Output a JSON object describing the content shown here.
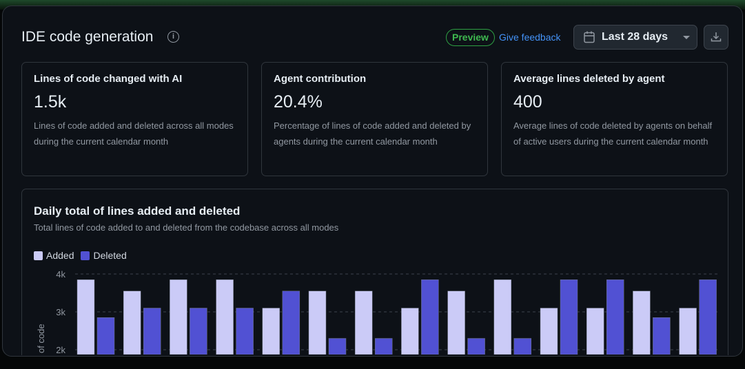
{
  "header": {
    "title": "IDE code generation",
    "badge": "Preview",
    "feedback": "Give feedback",
    "date_range": "Last 28 days"
  },
  "cards": [
    {
      "title": "Lines of code changed with AI",
      "value": "1.5k",
      "description": "Lines of code added and deleted across all modes during the current calendar month"
    },
    {
      "title": "Agent contribution",
      "value": "20.4%",
      "description": "Percentage of lines of code added and deleted by agents during the current calendar month"
    },
    {
      "title": "Average lines deleted by agent",
      "value": "400",
      "description": "Average lines of code deleted by agents on behalf of active users during the current calendar month"
    }
  ],
  "chart_data": {
    "type": "bar",
    "title": "Daily total of lines added and deleted",
    "subtitle": "Total lines of code added to and deleted from the codebase across all modes",
    "ylabel": "of code",
    "yticks": [
      "4k",
      "3k",
      "2k"
    ],
    "ylim": [
      2000,
      4000
    ],
    "grid": true,
    "legend_position": "top-left",
    "series": [
      {
        "name": "Added",
        "color": "#cbcbf7",
        "values": [
          3850,
          3550,
          3850,
          3850,
          3100,
          3550,
          3550,
          3100,
          3550,
          3850,
          3100,
          3100,
          3550,
          3100
        ]
      },
      {
        "name": "Deleted",
        "color": "#5151d3",
        "values": [
          2850,
          3100,
          3100,
          3100,
          3550,
          2300,
          2300,
          3850,
          2300,
          2300,
          3850,
          3850,
          2850,
          3850
        ]
      }
    ]
  }
}
